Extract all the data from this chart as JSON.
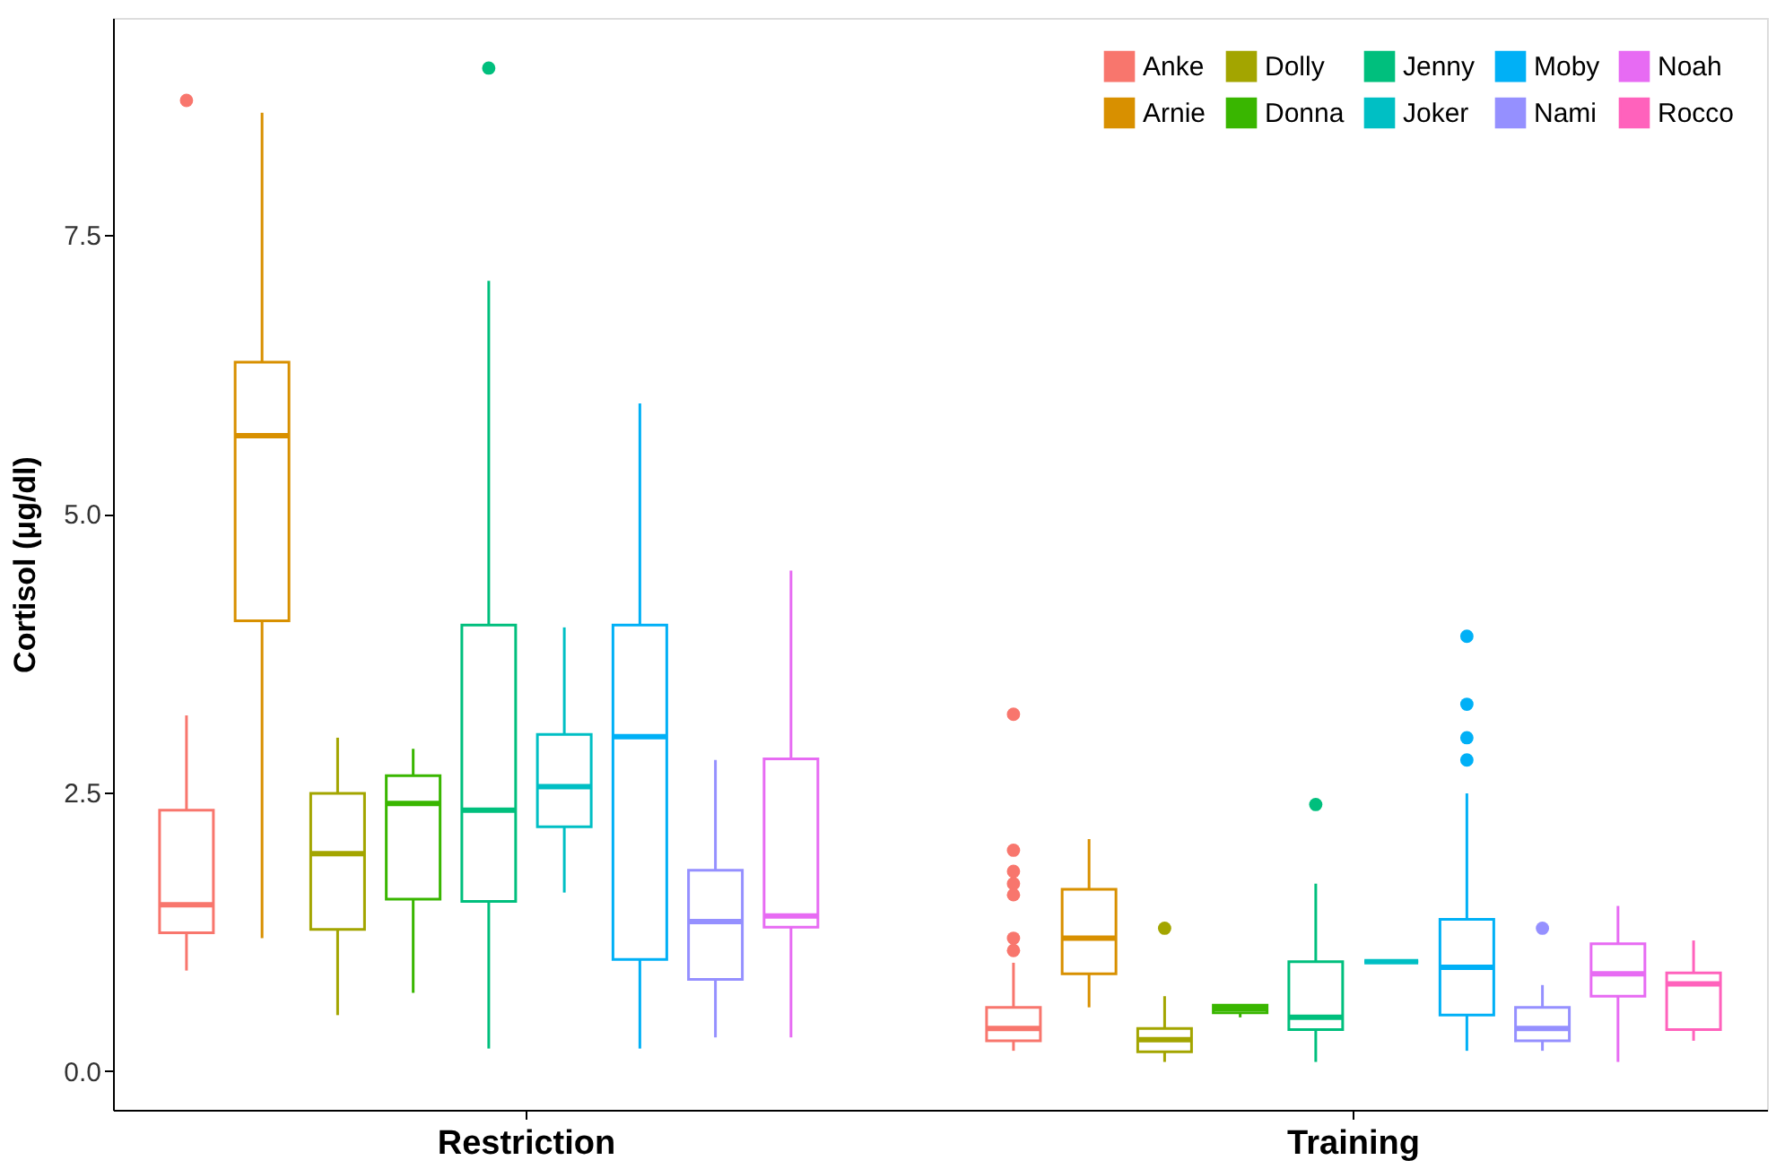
{
  "chart_data": {
    "type": "box",
    "ylabel": "Cortisol (μg/dl)",
    "categories": [
      "Restriction",
      "Training"
    ],
    "ylim": [
      -0.35,
      9.45
    ],
    "yticks": [
      {
        "value": 0,
        "label": "0.0"
      },
      {
        "value": 2.5,
        "label": "2.5"
      },
      {
        "value": 5,
        "label": "5.0"
      },
      {
        "value": 7.5,
        "label": "7.5"
      }
    ],
    "grid": false,
    "legend": "top right",
    "series": [
      {
        "name": "Anke",
        "color": "#f8766d",
        "boxes": [
          {
            "low": 0.9,
            "q1": 1.24,
            "median": 1.49,
            "q3": 2.34,
            "high": 3.19,
            "outliers": [
              8.71
            ]
          },
          {
            "low": 0.18,
            "q1": 0.27,
            "median": 0.38,
            "q3": 0.57,
            "high": 0.97,
            "outliers": [
              3.2,
              1.98,
              1.79,
              1.68,
              1.58,
              1.19,
              1.08
            ]
          }
        ]
      },
      {
        "name": "Arnie",
        "color": "#d89000",
        "boxes": [
          {
            "low": 1.19,
            "q1": 4.04,
            "median": 5.7,
            "q3": 6.36,
            "high": 8.6
          },
          {
            "low": 0.57,
            "q1": 0.87,
            "median": 1.19,
            "q3": 1.63,
            "high": 2.08
          }
        ]
      },
      {
        "name": "Dolly",
        "color": "#a3a500",
        "boxes": [
          {
            "low": 0.5,
            "q1": 1.27,
            "median": 1.95,
            "q3": 2.49,
            "high": 2.99
          },
          {
            "low": 0.08,
            "q1": 0.17,
            "median": 0.28,
            "q3": 0.38,
            "high": 0.67,
            "outliers": [
              1.28
            ]
          }
        ]
      },
      {
        "name": "Donna",
        "color": "#39b600",
        "boxes": [
          {
            "low": 0.7,
            "q1": 1.54,
            "median": 2.4,
            "q3": 2.65,
            "high": 2.89
          },
          {
            "low": 0.48,
            "q1": 0.52,
            "median": 0.56,
            "q3": 0.59,
            "high": 0.59
          }
        ]
      },
      {
        "name": "Jenny",
        "color": "#00bf7d",
        "boxes": [
          {
            "low": 0.2,
            "q1": 1.52,
            "median": 2.34,
            "q3": 4.0,
            "high": 7.09,
            "outliers": [
              9.0
            ]
          },
          {
            "low": 0.08,
            "q1": 0.37,
            "median": 0.48,
            "q3": 0.98,
            "high": 1.68,
            "outliers": [
              2.39
            ]
          }
        ]
      },
      {
        "name": "Joker",
        "color": "#00bfc4",
        "boxes": [
          {
            "low": 1.6,
            "q1": 2.19,
            "median": 2.55,
            "q3": 3.02,
            "high": 3.98
          },
          {
            "low": 0.98,
            "q1": 0.98,
            "median": 0.98,
            "q3": 0.98,
            "high": 0.98
          }
        ]
      },
      {
        "name": "Moby",
        "color": "#00b0f6",
        "boxes": [
          {
            "low": 0.2,
            "q1": 1.0,
            "median": 3.0,
            "q3": 4.0,
            "high": 5.99
          },
          {
            "low": 0.18,
            "q1": 0.5,
            "median": 0.93,
            "q3": 1.36,
            "high": 2.49,
            "outliers": [
              3.9,
              3.29,
              2.99,
              2.79
            ]
          }
        ]
      },
      {
        "name": "Nami",
        "color": "#9590ff",
        "boxes": [
          {
            "low": 0.3,
            "q1": 0.82,
            "median": 1.34,
            "q3": 1.8,
            "high": 2.79
          },
          {
            "low": 0.18,
            "q1": 0.27,
            "median": 0.38,
            "q3": 0.57,
            "high": 0.77,
            "outliers": [
              1.28
            ]
          }
        ]
      },
      {
        "name": "Noah",
        "color": "#e76bf3",
        "boxes": [
          {
            "low": 0.3,
            "q1": 1.29,
            "median": 1.39,
            "q3": 2.8,
            "high": 4.49
          },
          {
            "low": 0.08,
            "q1": 0.67,
            "median": 0.87,
            "q3": 1.14,
            "high": 1.48
          }
        ]
      },
      {
        "name": "Rocco",
        "color": "#ff62bc",
        "boxes": [
          null,
          {
            "low": 0.27,
            "q1": 0.37,
            "median": 0.78,
            "q3": 0.88,
            "high": 1.17
          }
        ]
      }
    ]
  }
}
